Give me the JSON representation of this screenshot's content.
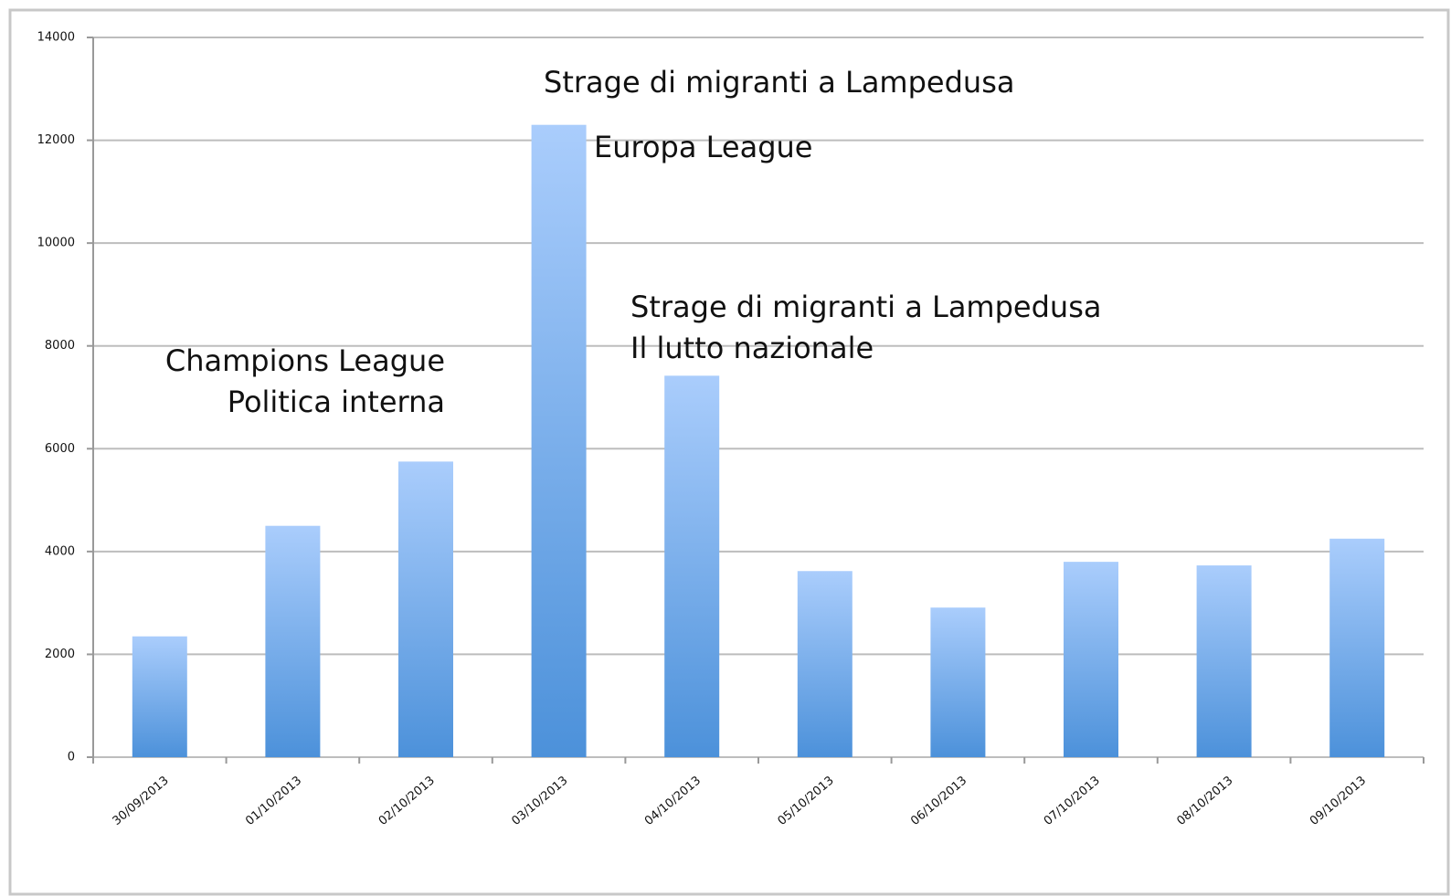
{
  "chart_data": {
    "type": "bar",
    "categories": [
      "30/09/2013",
      "01/10/2013",
      "02/10/2013",
      "03/10/2013",
      "04/10/2013",
      "05/10/2013",
      "06/10/2013",
      "07/10/2013",
      "08/10/2013",
      "09/10/2013"
    ],
    "values": [
      2350,
      4500,
      5750,
      12300,
      7420,
      3620,
      2910,
      3800,
      3730,
      4250
    ],
    "color": [
      "#aacdfc",
      "#4c91da"
    ],
    "ylim": [
      0,
      14000
    ],
    "yticks": [
      0,
      2000,
      4000,
      6000,
      8000,
      10000,
      12000,
      14000
    ],
    "grid": true,
    "annotations": [
      "Strage di migranti a Lampedusa",
      "Europa League",
      "Strage di migranti a Lampedusa",
      "Il lutto nazionale",
      "Champions League",
      "Politica interna"
    ]
  }
}
